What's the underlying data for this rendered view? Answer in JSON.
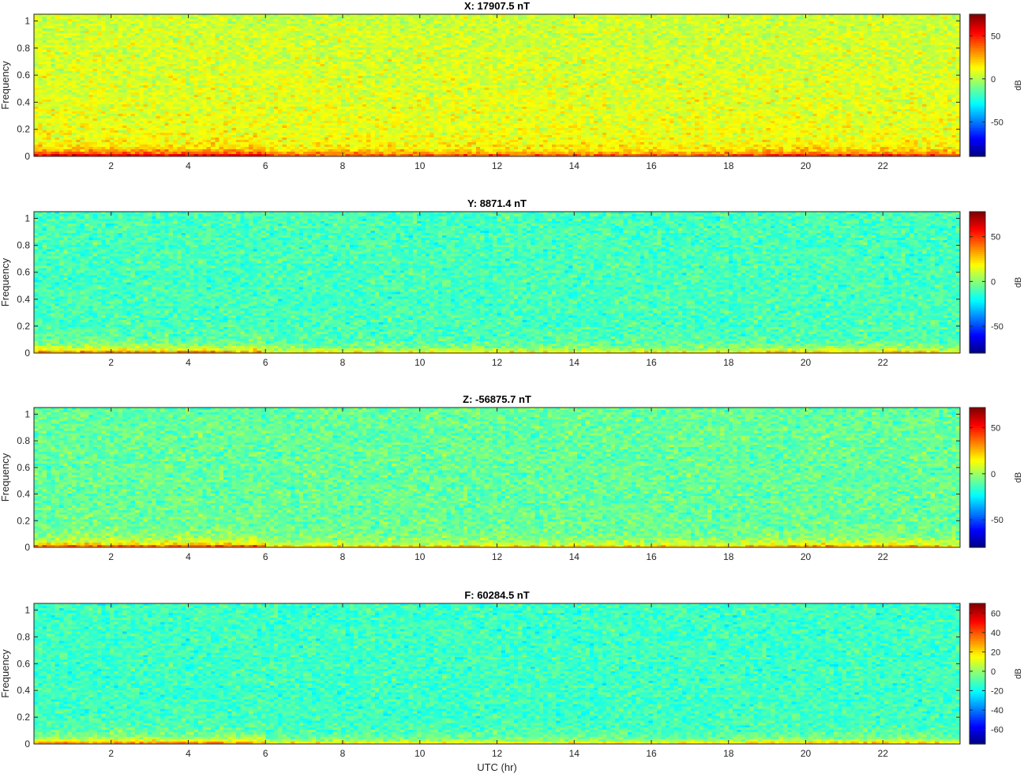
{
  "chart_data": [
    {
      "type": "heatmap",
      "title": "X: 17907.5 nT",
      "xlabel": "",
      "ylabel": "Frequency",
      "xlim": [
        0,
        24
      ],
      "ylim": [
        0,
        1.05
      ],
      "xticks": [
        2,
        4,
        6,
        8,
        10,
        12,
        14,
        16,
        18,
        20,
        22
      ],
      "yticks": [
        0,
        0.2,
        0.4,
        0.6,
        0.8,
        1
      ],
      "colorbar": {
        "label": "dB",
        "colormap": "jet",
        "range": [
          -90,
          75
        ],
        "ticks": [
          50,
          0,
          -50
        ]
      },
      "background_db": 5,
      "noise_db": 8,
      "low_band_db": 40
    },
    {
      "type": "heatmap",
      "title": "Y: 8871.4 nT",
      "xlabel": "",
      "ylabel": "Frequency",
      "xlim": [
        0,
        24
      ],
      "ylim": [
        0,
        1.05
      ],
      "xticks": [
        2,
        4,
        6,
        8,
        10,
        12,
        14,
        16,
        18,
        20,
        22
      ],
      "yticks": [
        0,
        0.2,
        0.4,
        0.6,
        0.8,
        1
      ],
      "colorbar": {
        "label": "dB",
        "colormap": "jet",
        "range": [
          -80,
          78
        ],
        "ticks": [
          50,
          0,
          -50
        ]
      },
      "background_db": -10,
      "noise_db": 8,
      "low_band_db": 40
    },
    {
      "type": "heatmap",
      "title": "Z: -56875.7 nT",
      "xlabel": "",
      "ylabel": "Frequency",
      "xlim": [
        0,
        24
      ],
      "ylim": [
        0,
        1.05
      ],
      "xticks": [
        2,
        4,
        6,
        8,
        10,
        12,
        14,
        16,
        18,
        20,
        22
      ],
      "yticks": [
        0,
        0.2,
        0.4,
        0.6,
        0.8,
        1
      ],
      "colorbar": {
        "label": "dB",
        "colormap": "jet",
        "range": [
          -80,
          72
        ],
        "ticks": [
          50,
          0,
          -50
        ]
      },
      "background_db": -8,
      "noise_db": 8,
      "low_band_db": 40
    },
    {
      "type": "heatmap",
      "title": "F: 60284.5 nT",
      "xlabel": "UTC (hr)",
      "ylabel": "Frequency",
      "xlim": [
        0,
        24
      ],
      "ylim": [
        0,
        1.05
      ],
      "xticks": [
        2,
        4,
        6,
        8,
        10,
        12,
        14,
        16,
        18,
        20,
        22
      ],
      "yticks": [
        0,
        0.2,
        0.4,
        0.6,
        0.8,
        1
      ],
      "colorbar": {
        "label": "dB",
        "colormap": "jet",
        "range": [
          -75,
          70
        ],
        "ticks": [
          60,
          40,
          20,
          0,
          -20,
          -40,
          -60
        ]
      },
      "background_db": -12,
      "noise_db": 7,
      "low_band_db": 36
    }
  ]
}
